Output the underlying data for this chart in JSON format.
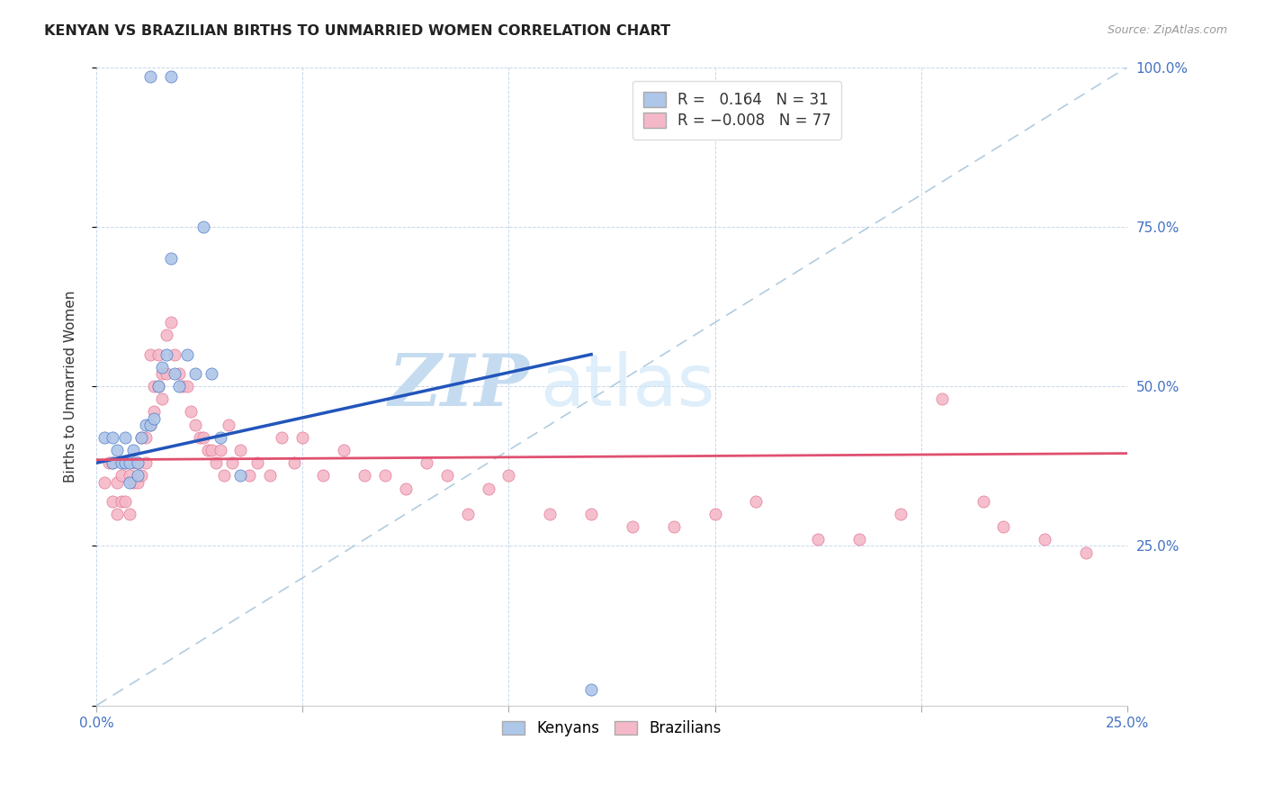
{
  "title": "KENYAN VS BRAZILIAN BIRTHS TO UNMARRIED WOMEN CORRELATION CHART",
  "source": "Source: ZipAtlas.com",
  "ylabel": "Births to Unmarried Women",
  "xlim": [
    0.0,
    0.25
  ],
  "ylim": [
    0.0,
    1.0
  ],
  "xticks": [
    0.0,
    0.25
  ],
  "xticklabels": [
    "0.0%",
    "25.0%"
  ],
  "yticks": [
    0.0,
    0.25,
    0.5,
    0.75,
    1.0
  ],
  "yticklabels_right": [
    "",
    "25.0%",
    "50.0%",
    "75.0%",
    "100.0%"
  ],
  "kenyan_R": 0.164,
  "kenyan_N": 31,
  "brazilian_R": -0.008,
  "brazilian_N": 77,
  "kenyan_color": "#aec6e8",
  "kenyan_edge_color": "#4472c4",
  "brazilian_color": "#f4b8c8",
  "brazilian_edge_color": "#e07090",
  "kenyan_trend_color": "#2255bb",
  "brazilian_trend_color": "#e05070",
  "diagonal_color": "#b0cce0",
  "watermark_zip": "ZIP",
  "watermark_atlas": "atlas",
  "watermark_color": "#c5dcf0",
  "legend_label_1": "Kenyans",
  "legend_label_2": "Brazilians",
  "kenyan_x": [
    0.013,
    0.018,
    0.002,
    0.004,
    0.004,
    0.005,
    0.006,
    0.007,
    0.007,
    0.008,
    0.008,
    0.009,
    0.01,
    0.01,
    0.011,
    0.012,
    0.013,
    0.014,
    0.015,
    0.016,
    0.017,
    0.018,
    0.019,
    0.02,
    0.022,
    0.024,
    0.026,
    0.028,
    0.03,
    0.035,
    0.12
  ],
  "kenyan_y": [
    0.985,
    0.985,
    0.42,
    0.42,
    0.38,
    0.4,
    0.38,
    0.42,
    0.38,
    0.35,
    0.38,
    0.4,
    0.38,
    0.36,
    0.42,
    0.44,
    0.44,
    0.45,
    0.5,
    0.53,
    0.55,
    0.7,
    0.52,
    0.5,
    0.55,
    0.52,
    0.75,
    0.52,
    0.42,
    0.36,
    0.025
  ],
  "brazilian_x": [
    0.002,
    0.003,
    0.004,
    0.004,
    0.005,
    0.005,
    0.006,
    0.006,
    0.007,
    0.007,
    0.008,
    0.008,
    0.009,
    0.009,
    0.01,
    0.01,
    0.011,
    0.011,
    0.012,
    0.012,
    0.013,
    0.013,
    0.014,
    0.014,
    0.015,
    0.015,
    0.016,
    0.016,
    0.017,
    0.017,
    0.018,
    0.019,
    0.02,
    0.021,
    0.022,
    0.023,
    0.024,
    0.025,
    0.026,
    0.027,
    0.028,
    0.029,
    0.03,
    0.031,
    0.032,
    0.033,
    0.035,
    0.037,
    0.039,
    0.042,
    0.045,
    0.048,
    0.05,
    0.055,
    0.06,
    0.065,
    0.07,
    0.075,
    0.08,
    0.085,
    0.09,
    0.095,
    0.1,
    0.11,
    0.12,
    0.13,
    0.14,
    0.15,
    0.16,
    0.175,
    0.185,
    0.195,
    0.205,
    0.215,
    0.22,
    0.23,
    0.24
  ],
  "brazilian_y": [
    0.35,
    0.38,
    0.32,
    0.38,
    0.35,
    0.3,
    0.32,
    0.36,
    0.32,
    0.38,
    0.3,
    0.36,
    0.35,
    0.38,
    0.35,
    0.38,
    0.36,
    0.42,
    0.38,
    0.42,
    0.44,
    0.55,
    0.46,
    0.5,
    0.5,
    0.55,
    0.48,
    0.52,
    0.52,
    0.58,
    0.6,
    0.55,
    0.52,
    0.5,
    0.5,
    0.46,
    0.44,
    0.42,
    0.42,
    0.4,
    0.4,
    0.38,
    0.4,
    0.36,
    0.44,
    0.38,
    0.4,
    0.36,
    0.38,
    0.36,
    0.42,
    0.38,
    0.42,
    0.36,
    0.4,
    0.36,
    0.36,
    0.34,
    0.38,
    0.36,
    0.3,
    0.34,
    0.36,
    0.3,
    0.3,
    0.28,
    0.28,
    0.3,
    0.32,
    0.26,
    0.26,
    0.3,
    0.48,
    0.32,
    0.28,
    0.26,
    0.24
  ]
}
